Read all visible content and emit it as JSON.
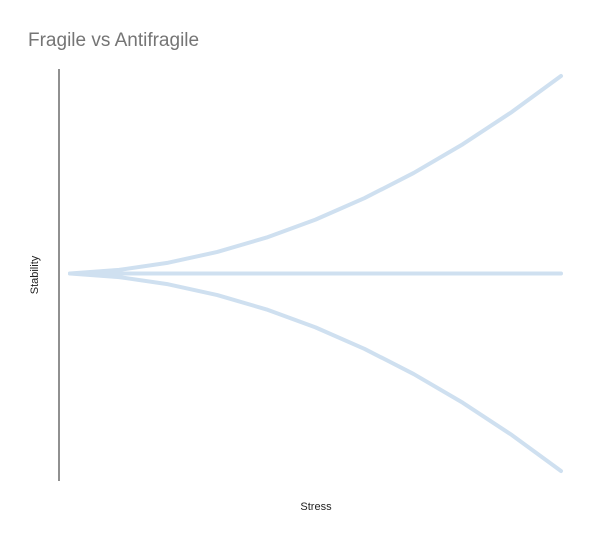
{
  "chart_data": {
    "type": "line",
    "title": "Fragile vs Antifragile",
    "xlabel": "Stress",
    "ylabel": "Stability",
    "grid": false,
    "legend": "none",
    "line_color": "#cfe0f0",
    "x": [
      0,
      0.1,
      0.2,
      0.3,
      0.4,
      0.5,
      0.6,
      0.7,
      0.8,
      0.9,
      1.0
    ],
    "series": [
      {
        "values": [
          0,
          0.015,
          0.045,
          0.09,
          0.15,
          0.225,
          0.315,
          0.42,
          0.54,
          0.675,
          0.825
        ]
      },
      {
        "values": [
          0,
          0,
          0,
          0,
          0,
          0,
          0,
          0,
          0,
          0,
          0
        ]
      },
      {
        "values": [
          0,
          -0.015,
          -0.045,
          -0.09,
          -0.15,
          -0.225,
          -0.315,
          -0.42,
          -0.54,
          -0.675,
          -0.825
        ]
      }
    ],
    "xlim": [
      0,
      1.0
    ],
    "ylim": [
      -0.85,
      0.85
    ]
  }
}
